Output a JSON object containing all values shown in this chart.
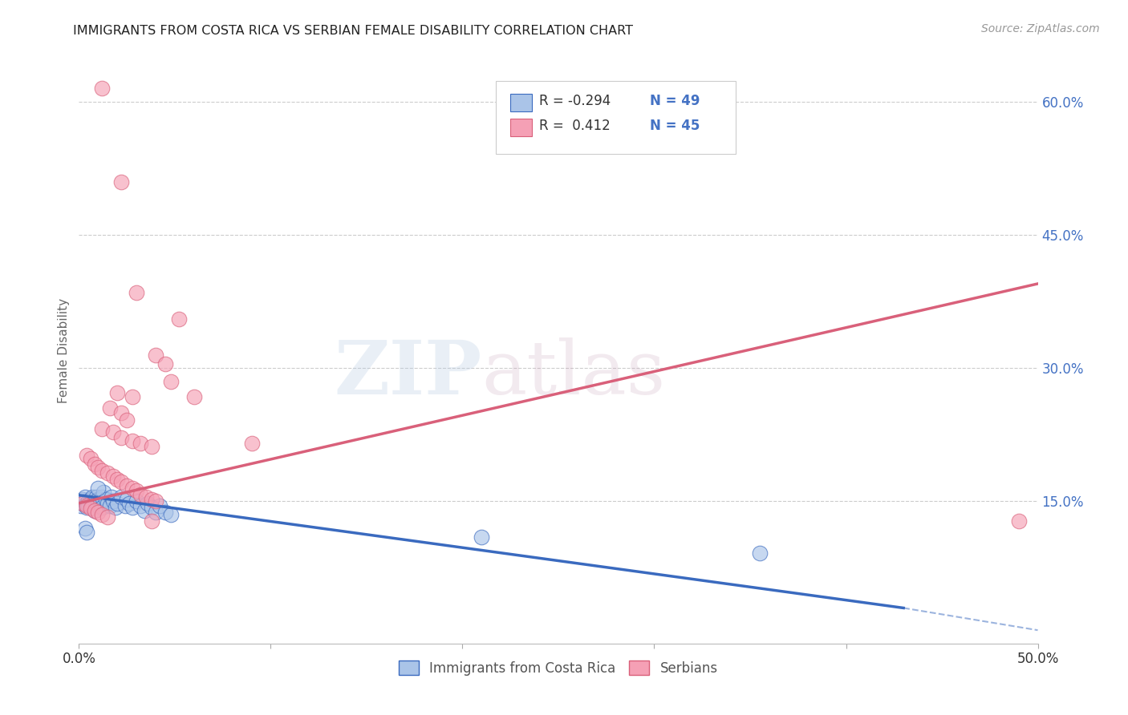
{
  "title": "IMMIGRANTS FROM COSTA RICA VS SERBIAN FEMALE DISABILITY CORRELATION CHART",
  "source": "Source: ZipAtlas.com",
  "ylabel": "Female Disability",
  "xlim": [
    0,
    0.5
  ],
  "ylim": [
    -0.01,
    0.65
  ],
  "right_yticks": [
    0.15,
    0.3,
    0.45,
    0.6
  ],
  "right_yticklabels": [
    "15.0%",
    "30.0%",
    "45.0%",
    "60.0%"
  ],
  "xticks": [
    0.0,
    0.1,
    0.2,
    0.3,
    0.4,
    0.5
  ],
  "xticklabels": [
    "0.0%",
    "",
    "",
    "",
    "",
    "50.0%"
  ],
  "legend_R1": "R = -0.294",
  "legend_N1": "N = 49",
  "legend_R2": "R =  0.412",
  "legend_N2": "N = 45",
  "color_blue": "#aac4e8",
  "color_pink": "#f5a0b5",
  "color_line_blue": "#3a6abf",
  "color_line_pink": "#d9607a",
  "color_legend_text": "#4472c4",
  "color_axis_right": "#4472c4",
  "watermark_zip": "ZIP",
  "watermark_atlas": "atlas",
  "background_color": "#ffffff",
  "grid_color": "#cccccc",
  "blue_scatter": [
    [
      0.001,
      0.145
    ],
    [
      0.002,
      0.148
    ],
    [
      0.002,
      0.152
    ],
    [
      0.003,
      0.15
    ],
    [
      0.003,
      0.155
    ],
    [
      0.004,
      0.148
    ],
    [
      0.004,
      0.143
    ],
    [
      0.005,
      0.15
    ],
    [
      0.005,
      0.145
    ],
    [
      0.006,
      0.152
    ],
    [
      0.006,
      0.148
    ],
    [
      0.007,
      0.155
    ],
    [
      0.007,
      0.143
    ],
    [
      0.008,
      0.15
    ],
    [
      0.008,
      0.14
    ],
    [
      0.009,
      0.148
    ],
    [
      0.009,
      0.155
    ],
    [
      0.01,
      0.145
    ],
    [
      0.01,
      0.152
    ],
    [
      0.011,
      0.148
    ],
    [
      0.012,
      0.155
    ],
    [
      0.012,
      0.143
    ],
    [
      0.013,
      0.16
    ],
    [
      0.014,
      0.152
    ],
    [
      0.015,
      0.148
    ],
    [
      0.016,
      0.145
    ],
    [
      0.017,
      0.155
    ],
    [
      0.018,
      0.15
    ],
    [
      0.019,
      0.143
    ],
    [
      0.02,
      0.148
    ],
    [
      0.022,
      0.155
    ],
    [
      0.024,
      0.145
    ],
    [
      0.025,
      0.152
    ],
    [
      0.026,
      0.148
    ],
    [
      0.028,
      0.143
    ],
    [
      0.03,
      0.15
    ],
    [
      0.032,
      0.145
    ],
    [
      0.034,
      0.14
    ],
    [
      0.036,
      0.148
    ],
    [
      0.038,
      0.143
    ],
    [
      0.04,
      0.138
    ],
    [
      0.042,
      0.145
    ],
    [
      0.045,
      0.138
    ],
    [
      0.048,
      0.135
    ],
    [
      0.01,
      0.165
    ],
    [
      0.003,
      0.12
    ],
    [
      0.004,
      0.115
    ],
    [
      0.21,
      0.11
    ],
    [
      0.355,
      0.092
    ]
  ],
  "pink_scatter": [
    [
      0.012,
      0.615
    ],
    [
      0.022,
      0.51
    ],
    [
      0.03,
      0.385
    ],
    [
      0.052,
      0.355
    ],
    [
      0.04,
      0.315
    ],
    [
      0.045,
      0.305
    ],
    [
      0.048,
      0.285
    ],
    [
      0.02,
      0.272
    ],
    [
      0.028,
      0.268
    ],
    [
      0.06,
      0.268
    ],
    [
      0.016,
      0.255
    ],
    [
      0.022,
      0.25
    ],
    [
      0.025,
      0.242
    ],
    [
      0.012,
      0.232
    ],
    [
      0.018,
      0.228
    ],
    [
      0.022,
      0.222
    ],
    [
      0.028,
      0.218
    ],
    [
      0.032,
      0.215
    ],
    [
      0.09,
      0.215
    ],
    [
      0.038,
      0.212
    ],
    [
      0.004,
      0.202
    ],
    [
      0.006,
      0.198
    ],
    [
      0.008,
      0.192
    ],
    [
      0.01,
      0.188
    ],
    [
      0.012,
      0.185
    ],
    [
      0.015,
      0.182
    ],
    [
      0.018,
      0.178
    ],
    [
      0.02,
      0.175
    ],
    [
      0.022,
      0.172
    ],
    [
      0.025,
      0.168
    ],
    [
      0.028,
      0.165
    ],
    [
      0.03,
      0.162
    ],
    [
      0.032,
      0.158
    ],
    [
      0.035,
      0.155
    ],
    [
      0.038,
      0.152
    ],
    [
      0.04,
      0.15
    ],
    [
      0.002,
      0.148
    ],
    [
      0.004,
      0.145
    ],
    [
      0.006,
      0.142
    ],
    [
      0.008,
      0.14
    ],
    [
      0.01,
      0.138
    ],
    [
      0.012,
      0.135
    ],
    [
      0.038,
      0.128
    ],
    [
      0.015,
      0.132
    ],
    [
      0.49,
      0.128
    ]
  ],
  "blue_line": [
    [
      0.0,
      0.157
    ],
    [
      0.43,
      0.03
    ]
  ],
  "pink_line": [
    [
      0.0,
      0.148
    ],
    [
      0.5,
      0.395
    ]
  ],
  "blue_dash_line": [
    [
      0.43,
      0.03
    ],
    [
      0.5,
      0.005
    ]
  ]
}
